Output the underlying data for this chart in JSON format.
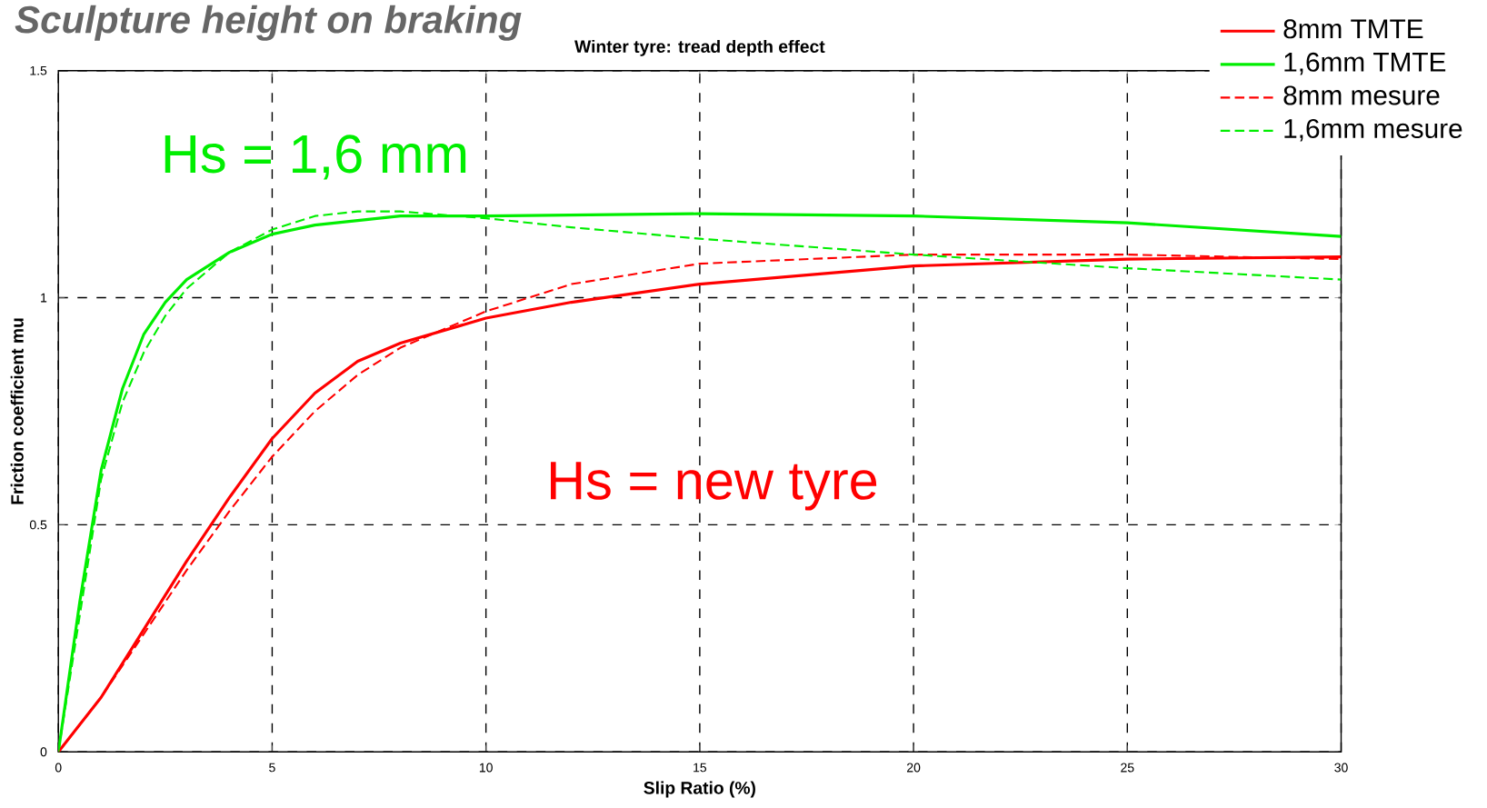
{
  "chart_data": {
    "type": "line",
    "title": "Sculpture height on braking",
    "subtitle": "Winter tyre: tread depth effect",
    "xlabel": "Slip Ratio (%)",
    "ylabel": "Friction coefficient mu",
    "xlim": [
      0,
      30
    ],
    "ylim": [
      0,
      1.5
    ],
    "xticks": [
      0,
      5,
      10,
      15,
      20,
      25,
      30
    ],
    "yticks": [
      0,
      0.5,
      1,
      1.5
    ],
    "grid": true,
    "legend": "top right",
    "series": [
      {
        "name": "8mm TMTE",
        "color": "#ff0000",
        "line_style": "solid",
        "x": [
          0,
          1,
          2,
          3,
          4,
          5,
          6,
          7,
          8,
          10,
          12,
          15,
          20,
          25,
          30
        ],
        "values": [
          0,
          0.12,
          0.27,
          0.42,
          0.56,
          0.69,
          0.79,
          0.86,
          0.9,
          0.955,
          0.99,
          1.03,
          1.07,
          1.085,
          1.09
        ]
      },
      {
        "name": "1,6mm TMTE",
        "color": "#00ee00",
        "line_style": "solid",
        "x": [
          0,
          0.5,
          1,
          1.5,
          2,
          2.5,
          3,
          4,
          5,
          6,
          8,
          10,
          15,
          20,
          25,
          30
        ],
        "values": [
          0,
          0.33,
          0.62,
          0.8,
          0.92,
          0.99,
          1.04,
          1.1,
          1.14,
          1.16,
          1.18,
          1.18,
          1.185,
          1.18,
          1.165,
          1.135
        ]
      },
      {
        "name": "8mm mesure",
        "color": "#ff0000",
        "line_style": "dashed",
        "x": [
          0,
          1,
          2,
          3,
          4,
          5,
          6,
          7,
          8,
          9,
          10,
          12,
          15,
          20,
          25,
          30
        ],
        "values": [
          0,
          0.12,
          0.26,
          0.4,
          0.53,
          0.65,
          0.75,
          0.83,
          0.89,
          0.93,
          0.97,
          1.03,
          1.075,
          1.095,
          1.095,
          1.085
        ]
      },
      {
        "name": "1,6mm mesure",
        "color": "#00ee00",
        "line_style": "dashed",
        "x": [
          0,
          0.5,
          1,
          1.5,
          2,
          2.5,
          3,
          4,
          5,
          6,
          7,
          8,
          10,
          12,
          15,
          20,
          25,
          30
        ],
        "values": [
          0,
          0.3,
          0.6,
          0.77,
          0.88,
          0.96,
          1.02,
          1.1,
          1.15,
          1.18,
          1.19,
          1.19,
          1.175,
          1.155,
          1.13,
          1.095,
          1.065,
          1.04
        ]
      }
    ],
    "annotations": [
      "Hs = 1,6 mm",
      "Hs = new tyre"
    ]
  }
}
